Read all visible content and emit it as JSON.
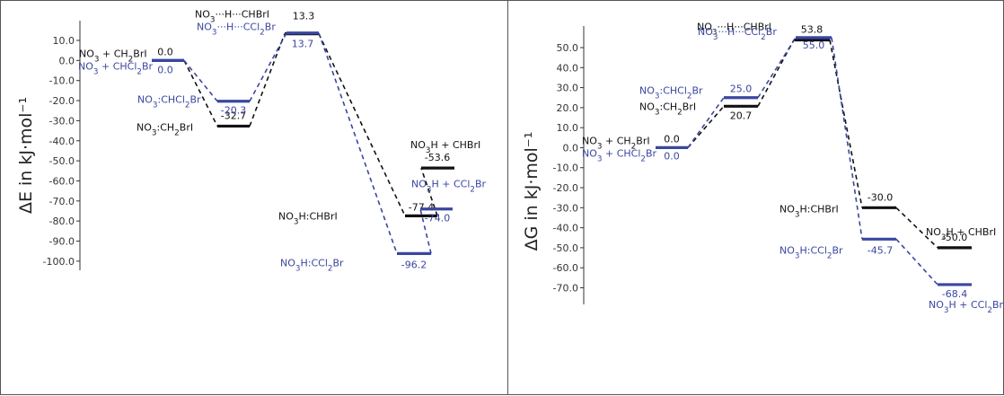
{
  "colors": {
    "black_path": "#111111",
    "blue_path": "#3a46a0",
    "axis": "#333333"
  },
  "chart_data": [
    {
      "type": "line",
      "chart": "energy-profile",
      "ylabel": "ΔE in kJ·mol⁻¹",
      "ylim": [
        -100,
        10
      ],
      "yticks": [
        10,
        0,
        -10,
        -20,
        -30,
        -40,
        -50,
        -60,
        -70,
        -80,
        -90,
        -100
      ],
      "ytick_labels": [
        "10.0",
        "0.0",
        "-10.0",
        "-20.0",
        "-30.0",
        "-40.0",
        "-50.0",
        "-60.0",
        "-70.0",
        "-80.0",
        "-90.0",
        "-100.0"
      ],
      "grid": false,
      "series": [
        {
          "color": "#111111",
          "levels": [
            {
              "stage": 0,
              "value": 0.0,
              "value_label": "0.0",
              "species": "NO3 + CH2BrI"
            },
            {
              "stage": 1,
              "value": -32.7,
              "value_label": "-32.7",
              "species": "NO3:CH2BrI"
            },
            {
              "stage": 2,
              "value": 13.3,
              "value_label": "13.3",
              "species": "NO3···H···CHBrI"
            },
            {
              "stage": 3,
              "value": -77.4,
              "value_label": "-77.4",
              "species": "NO3H:CHBrI"
            },
            {
              "stage": 4,
              "value": -53.6,
              "value_label": "-53.6",
              "species": "NO3H + CHBrI"
            }
          ]
        },
        {
          "color": "#3a46a0",
          "levels": [
            {
              "stage": 0,
              "value": 0.0,
              "value_label": "0.0",
              "species": "NO3 + CHCl2Br"
            },
            {
              "stage": 1,
              "value": -20.3,
              "value_label": "-20.3",
              "species": "NO3:CHCl2Br"
            },
            {
              "stage": 2,
              "value": 13.7,
              "value_label": "13.7",
              "species": "NO3···H···CCl2Br"
            },
            {
              "stage": 3,
              "value": -96.2,
              "value_label": "-96.2",
              "species": "NO3H:CCl2Br"
            },
            {
              "stage": 4,
              "value": -74.0,
              "value_label": "-74.0",
              "species": "NO3H + CCl2Br"
            }
          ]
        }
      ]
    },
    {
      "type": "line",
      "chart": "free-energy-profile",
      "ylabel": "ΔG in kJ·mol⁻¹",
      "ylim": [
        -70,
        50
      ],
      "yticks": [
        50,
        40,
        30,
        20,
        10,
        0,
        -10,
        -20,
        -30,
        -40,
        -50,
        -60,
        -70
      ],
      "ytick_labels": [
        "50.0",
        "40.0",
        "30.0",
        "20.0",
        "10.0",
        "0.0",
        "-10.0",
        "-20.0",
        "-30.0",
        "-40.0",
        "-50.0",
        "-60.0",
        "-70.0"
      ],
      "grid": false,
      "series": [
        {
          "color": "#111111",
          "levels": [
            {
              "stage": 0,
              "value": 0.0,
              "value_label": "0.0",
              "species": "NO3 + CH2BrI"
            },
            {
              "stage": 1,
              "value": 20.7,
              "value_label": "20.7",
              "species": "NO3:CH2BrI"
            },
            {
              "stage": 2,
              "value": 53.8,
              "value_label": "53.8",
              "species": "NO3···H···CHBrI"
            },
            {
              "stage": 3,
              "value": -30.0,
              "value_label": "-30.0",
              "species": "NO3H:CHBrI"
            },
            {
              "stage": 4,
              "value": -50.0,
              "value_label": "-50.0",
              "species": "NO3H + CHBrI"
            }
          ]
        },
        {
          "color": "#3a46a0",
          "levels": [
            {
              "stage": 0,
              "value": 0.0,
              "value_label": "0.0",
              "species": "NO3 + CHCl2Br"
            },
            {
              "stage": 1,
              "value": 25.0,
              "value_label": "25.0",
              "species": "NO3:CHCl2Br"
            },
            {
              "stage": 2,
              "value": 55.0,
              "value_label": "55.0",
              "species": "NO3···H···CCl2Br"
            },
            {
              "stage": 3,
              "value": -45.7,
              "value_label": "-45.7",
              "species": "NO3H:CCl2Br"
            },
            {
              "stage": 4,
              "value": -68.4,
              "value_label": "-68.4",
              "species": "NO3H + CCl2Br"
            }
          ]
        }
      ]
    }
  ]
}
